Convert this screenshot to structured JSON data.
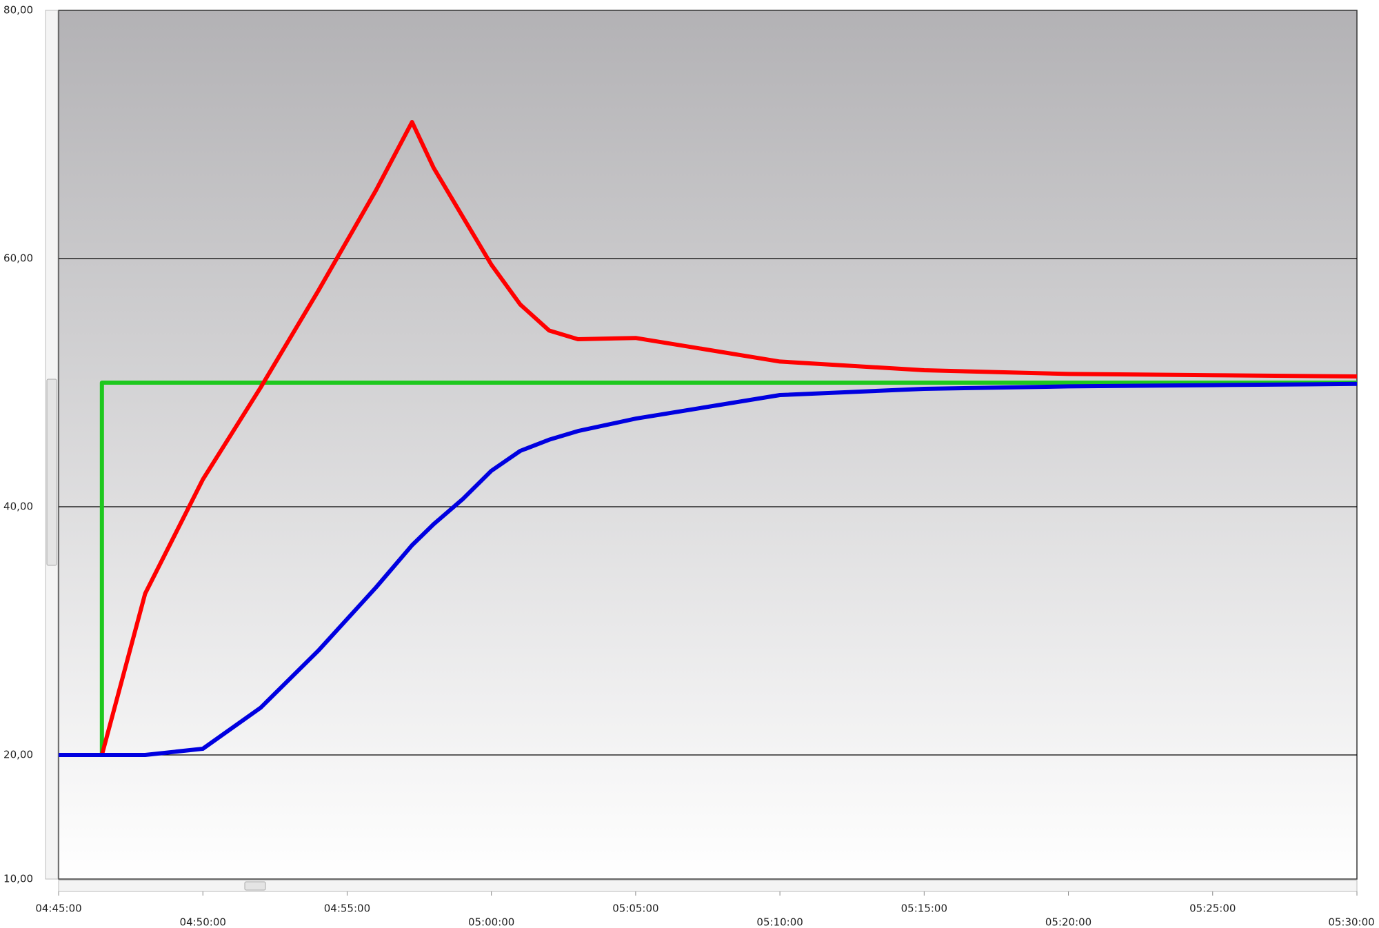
{
  "chart_data": {
    "type": "line",
    "x": [
      "04:45:00",
      "04:46:30",
      "04:46:30",
      "04:48:00",
      "04:50:00",
      "04:52:00",
      "04:54:00",
      "04:56:00",
      "04:57:15",
      "04:58:00",
      "04:59:00",
      "05:00:00",
      "05:01:00",
      "05:02:00",
      "05:03:00",
      "05:05:00",
      "05:10:00",
      "05:15:00",
      "05:20:00",
      "05:25:00",
      "05:30:00"
    ],
    "series": [
      {
        "color": "#1ec81e",
        "values": [
          20,
          20,
          50,
          50,
          50,
          50,
          50,
          50,
          50,
          50,
          50,
          50,
          50,
          50,
          50,
          50,
          50,
          50,
          50,
          50,
          50
        ]
      },
      {
        "color": "#ff0000",
        "values": [
          20,
          20,
          20,
          33,
          42.2,
          49.6,
          57.4,
          65.5,
          71,
          67.3,
          63.4,
          59.5,
          56.3,
          54.2,
          53.5,
          53.6,
          51.7,
          51,
          50.7,
          50.6,
          50.5
        ]
      },
      {
        "color": "#0000e0",
        "values": [
          20,
          20,
          20,
          20,
          20.5,
          23.8,
          28.4,
          33.5,
          36.9,
          38.6,
          40.6,
          42.9,
          44.5,
          45.4,
          46.1,
          47.1,
          49,
          49.5,
          49.7,
          49.8,
          49.9
        ]
      }
    ],
    "xlim": [
      "04:45:00",
      "05:30:00"
    ],
    "xticks": [
      "04:45:00",
      "04:50:00",
      "04:55:00",
      "05:00:00",
      "05:05:00",
      "05:10:00",
      "05:15:00",
      "05:20:00",
      "05:25:00",
      "05:30:00"
    ],
    "ylim": [
      10,
      80
    ],
    "yticks": [
      {
        "value": 10,
        "label": "10,00"
      },
      {
        "value": 20,
        "label": "20,00"
      },
      {
        "value": 40,
        "label": "40,00"
      },
      {
        "value": 60,
        "label": "60,00"
      },
      {
        "value": 80,
        "label": "80,00"
      }
    ],
    "grid": true
  }
}
